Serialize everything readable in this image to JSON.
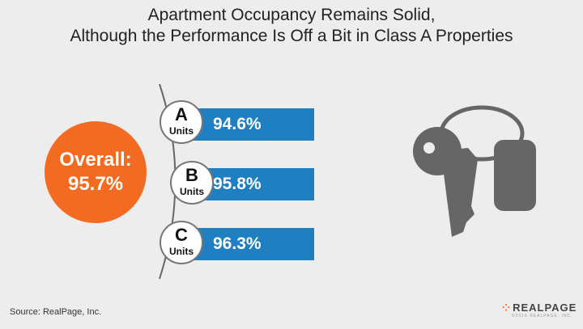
{
  "title": {
    "line1": "Apartment Occupancy Remains Solid,",
    "line2": "Although the Performance Is Off a Bit in Class A Properties"
  },
  "overall": {
    "label": "Overall:",
    "value": "95.7%"
  },
  "classes": [
    {
      "letter": "A",
      "units_label": "Units",
      "value": "94.6%"
    },
    {
      "letter": "B",
      "units_label": "Units",
      "value": "95.8%"
    },
    {
      "letter": "C",
      "units_label": "Units",
      "value": "96.3%"
    }
  ],
  "source": "Source: RealPage, Inc.",
  "logo": {
    "name": "REALPAGE",
    "sub": "©2016 REALPAGE, INC."
  },
  "icons": {
    "keys": "keys-icon"
  },
  "colors": {
    "overall": "#f26b21",
    "bar": "#1f7fc1",
    "key": "#666666"
  }
}
